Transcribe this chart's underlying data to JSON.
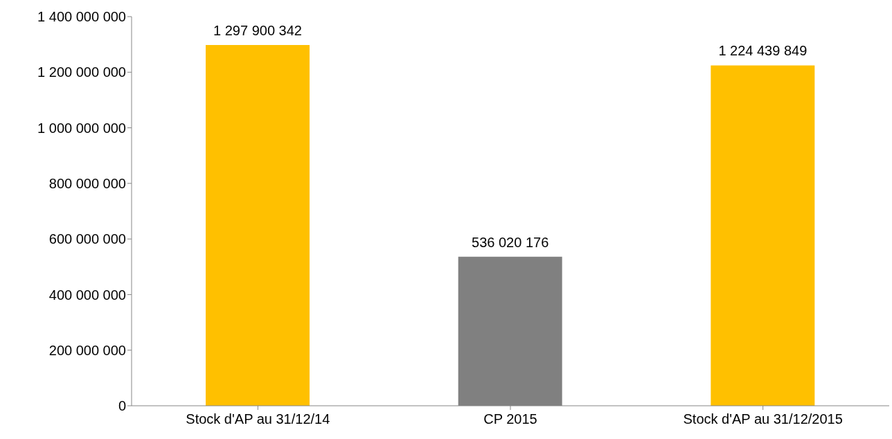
{
  "chart_data": {
    "type": "bar",
    "categories": [
      "Stock d'AP au 31/12/14",
      "CP 2015",
      "Stock d'AP au 31/12/2015"
    ],
    "values": [
      1297900342,
      536020176,
      1224439849
    ],
    "colors": [
      "#ffc000",
      "#808080",
      "#ffc000"
    ],
    "value_labels": [
      "1 297 900 342",
      "536 020 176",
      "1 224 439 849"
    ],
    "ylim": [
      0,
      1400000000
    ],
    "yticks": [
      {
        "value": 0,
        "label": "0"
      },
      {
        "value": 200000000,
        "label": "200 000 000"
      },
      {
        "value": 400000000,
        "label": "400 000 000"
      },
      {
        "value": 600000000,
        "label": "600 000 000"
      },
      {
        "value": 800000000,
        "label": "800 000 000"
      },
      {
        "value": 1000000000,
        "label": "1 000 000 000"
      },
      {
        "value": 1200000000,
        "label": "1 200 000 000"
      },
      {
        "value": 1400000000,
        "label": "1 400 000 000"
      }
    ],
    "grid": false,
    "legend": false
  }
}
